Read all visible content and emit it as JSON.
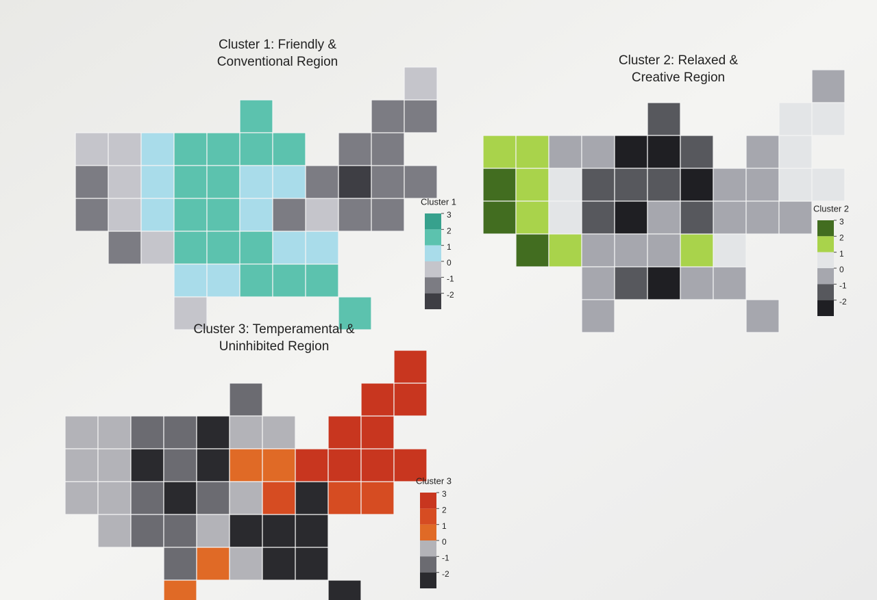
{
  "chart_data": [
    {
      "type": "choropleth",
      "title": [
        "Cluster 1: Friendly &",
        "Conventional Region"
      ],
      "legend_title": "Cluster 1",
      "legend_lim": [
        -3,
        3
      ],
      "legend_ticks": [
        3,
        2,
        1,
        0,
        -1,
        -2
      ],
      "legend_colors": [
        "#37a18d",
        "#5cc2ae",
        "#a9dcea",
        "#c5c5cb",
        "#7c7c83",
        "#3e3e44"
      ],
      "values": [
        -0.5,
        -1.5,
        -1.5,
        -0.5,
        -0.5,
        0.5,
        0.5,
        -0.5,
        0.5,
        -1.5,
        -0.5,
        1.5,
        1.5,
        1.5,
        1.5,
        0.5,
        -0.5,
        1.5,
        1.5,
        1.5,
        1.5,
        0.5,
        1.5,
        1.5,
        1.5,
        0.5,
        0.5,
        0.5,
        1.5,
        1.5,
        1.5,
        1.5,
        1.5,
        0.5,
        0.5,
        -0.5,
        -1.5,
        -1.5,
        -1.5,
        -2.5,
        -1.5,
        -1.5,
        -1.5,
        -1.5,
        -1.5,
        -1.5,
        -1.5,
        -0.5
      ]
    },
    {
      "type": "choropleth",
      "title": [
        "Cluster 2: Relaxed &",
        "Creative Region"
      ],
      "legend_title": "Cluster 2",
      "legend_lim": [
        -3,
        3
      ],
      "legend_ticks": [
        3,
        2,
        1,
        0,
        -1,
        -2
      ],
      "legend_colors": [
        "#426d20",
        "#a9d34b",
        "#e3e5e7",
        "#a6a7ae",
        "#57585d",
        "#1f1f23"
      ],
      "values": [
        1.5,
        2.5,
        2.5,
        1.5,
        1.5,
        -0.5,
        0.5,
        1.5,
        0.5,
        2.5,
        1.5,
        -0.5,
        -1.5,
        -1.5,
        -0.5,
        -0.5,
        -0.5,
        -2.5,
        -1.5,
        -2.5,
        -0.5,
        -1.5,
        -1.5,
        -2.5,
        -1.5,
        -1.5,
        -2.5,
        -0.5,
        -0.5,
        -2.5,
        -0.5,
        -0.5,
        -0.5,
        0.5,
        1.5,
        -0.5,
        -1.5,
        -0.5,
        -0.5,
        -0.5,
        -0.5,
        -0.5,
        0.5,
        0.5,
        0.5,
        0.5,
        0.5,
        -0.5
      ]
    },
    {
      "type": "choropleth",
      "title": [
        "Cluster 3: Temperamental &",
        "Uninhibited Region"
      ],
      "legend_title": "Cluster 3",
      "legend_lim": [
        -3,
        3
      ],
      "legend_ticks": [
        3,
        2,
        1,
        0,
        -1,
        -2
      ],
      "legend_colors": [
        "#c8361f",
        "#d64c22",
        "#e06a26",
        "#b3b3b8",
        "#6b6b71",
        "#2a2a2e"
      ],
      "values": [
        -0.5,
        -0.5,
        -0.5,
        -0.5,
        -0.5,
        -1.5,
        -2.5,
        -0.5,
        -1.5,
        -0.5,
        -1.5,
        -1.5,
        -1.5,
        -2.5,
        -1.5,
        -1.5,
        0.5,
        -2.5,
        -2.5,
        -1.5,
        -0.5,
        0.5,
        -1.5,
        -0.5,
        -0.5,
        0.5,
        0.5,
        -0.5,
        -2.5,
        -0.5,
        -2.5,
        -2.5,
        -2.5,
        -2.5,
        -2.5,
        -2.5,
        1.5,
        2.5,
        2.5,
        2.5,
        1.5,
        1.5,
        2.5,
        2.5,
        2.5,
        2.5,
        2.5,
        2.5
      ]
    }
  ]
}
